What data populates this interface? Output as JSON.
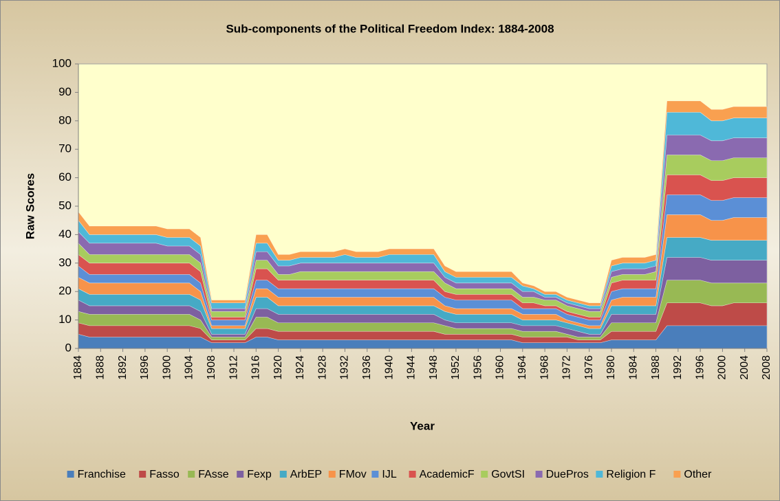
{
  "chart_data": {
    "type": "area",
    "stacked": true,
    "title": "Sub-components of the Political Freedom Index: 1884-2008",
    "x_label": "Year",
    "y_label": "Raw Scores",
    "x": [
      1884,
      1886,
      1898,
      1900,
      1904,
      1906,
      1908,
      1914,
      1916,
      1918,
      1920,
      1922,
      1924,
      1930,
      1932,
      1934,
      1938,
      1940,
      1948,
      1950,
      1952,
      1962,
      1964,
      1966,
      1968,
      1970,
      1972,
      1974,
      1976,
      1978,
      1980,
      1982,
      1986,
      1988,
      1990,
      1996,
      1998,
      2000,
      2002,
      2008
    ],
    "xlim": [
      1884,
      2008
    ],
    "xticks": [
      1884,
      1888,
      1892,
      1896,
      1900,
      1904,
      1908,
      1912,
      1916,
      1920,
      1924,
      1928,
      1932,
      1936,
      1940,
      1944,
      1948,
      1952,
      1956,
      1960,
      1964,
      1968,
      1972,
      1976,
      1980,
      1984,
      1988,
      1992,
      1996,
      2000,
      2004,
      2008
    ],
    "ylim": [
      0,
      100
    ],
    "yticks": [
      0,
      10,
      20,
      30,
      40,
      50,
      60,
      70,
      80,
      90,
      100
    ],
    "grid": false,
    "legend": "bottom",
    "series": [
      {
        "name": "Franchise",
        "color": "#4a7ebb",
        "values": [
          5,
          4,
          4,
          4,
          4,
          4,
          2,
          2,
          4,
          4,
          3,
          3,
          3,
          3,
          3,
          3,
          3,
          3,
          3,
          3,
          3,
          3,
          2,
          2,
          2,
          2,
          2,
          2,
          2,
          2,
          3,
          3,
          3,
          3,
          8,
          8,
          8,
          8,
          8,
          8
        ]
      },
      {
        "name": "Fasso",
        "color": "#be4b48",
        "values": [
          4,
          4,
          4,
          4,
          4,
          3,
          1,
          1,
          3,
          3,
          3,
          3,
          3,
          3,
          3,
          3,
          3,
          3,
          3,
          2,
          2,
          2,
          2,
          2,
          2,
          2,
          2,
          1,
          1,
          1,
          3,
          3,
          3,
          3,
          8,
          8,
          7,
          7,
          8,
          8
        ]
      },
      {
        "name": "FAsse",
        "color": "#98b954",
        "values": [
          4,
          4,
          4,
          4,
          4,
          3,
          1,
          1,
          4,
          4,
          3,
          3,
          3,
          3,
          3,
          3,
          3,
          3,
          3,
          3,
          2,
          2,
          2,
          2,
          2,
          2,
          1,
          1,
          1,
          1,
          3,
          3,
          3,
          3,
          8,
          8,
          8,
          8,
          7,
          7
        ]
      },
      {
        "name": "Fexp",
        "color": "#7d60a0",
        "values": [
          4,
          3,
          3,
          3,
          3,
          3,
          1,
          1,
          3,
          3,
          3,
          3,
          3,
          3,
          3,
          3,
          3,
          3,
          3,
          2,
          2,
          2,
          2,
          2,
          2,
          2,
          2,
          2,
          1,
          1,
          3,
          3,
          3,
          3,
          8,
          8,
          8,
          8,
          8,
          8
        ]
      },
      {
        "name": "ArbEP",
        "color": "#46aac5",
        "values": [
          4,
          4,
          4,
          4,
          4,
          4,
          2,
          2,
          4,
          4,
          3,
          3,
          3,
          3,
          3,
          3,
          3,
          3,
          3,
          3,
          3,
          3,
          2,
          2,
          2,
          2,
          2,
          2,
          2,
          2,
          3,
          3,
          3,
          3,
          7,
          7,
          7,
          7,
          7,
          7
        ]
      },
      {
        "name": "FMov",
        "color": "#f7934a",
        "values": [
          4,
          4,
          4,
          4,
          4,
          3,
          1,
          1,
          3,
          3,
          3,
          3,
          3,
          3,
          3,
          3,
          3,
          3,
          3,
          2,
          2,
          2,
          2,
          2,
          2,
          2,
          1,
          1,
          1,
          1,
          2,
          3,
          3,
          3,
          8,
          8,
          7,
          7,
          8,
          8
        ]
      },
      {
        "name": "IJL",
        "color": "#5b8fd6",
        "values": [
          4,
          3,
          3,
          3,
          3,
          3,
          2,
          2,
          3,
          3,
          3,
          3,
          3,
          3,
          3,
          3,
          3,
          3,
          3,
          3,
          3,
          3,
          2,
          2,
          2,
          2,
          2,
          2,
          2,
          2,
          3,
          3,
          3,
          3,
          7,
          7,
          7,
          7,
          7,
          7
        ]
      },
      {
        "name": "AcademicF",
        "color": "#d9534f",
        "values": [
          4,
          4,
          4,
          4,
          4,
          4,
          1,
          1,
          4,
          4,
          3,
          3,
          3,
          3,
          3,
          3,
          3,
          3,
          3,
          2,
          2,
          2,
          2,
          2,
          1,
          1,
          1,
          1,
          1,
          1,
          3,
          3,
          3,
          3,
          7,
          7,
          7,
          7,
          7,
          7
        ]
      },
      {
        "name": "GovtSI",
        "color": "#a8cc5e",
        "values": [
          4,
          3,
          3,
          3,
          3,
          3,
          2,
          2,
          3,
          3,
          2,
          2,
          3,
          3,
          3,
          3,
          3,
          3,
          3,
          3,
          2,
          2,
          2,
          2,
          2,
          2,
          2,
          2,
          2,
          2,
          2,
          2,
          2,
          3,
          7,
          7,
          7,
          7,
          7,
          7
        ]
      },
      {
        "name": "DuePros",
        "color": "#8a6ab0",
        "values": [
          4,
          4,
          4,
          3,
          3,
          3,
          1,
          1,
          3,
          3,
          3,
          3,
          3,
          3,
          3,
          3,
          3,
          3,
          3,
          2,
          2,
          2,
          2,
          2,
          1,
          1,
          1,
          1,
          1,
          1,
          2,
          2,
          2,
          2,
          7,
          7,
          7,
          7,
          7,
          7
        ]
      },
      {
        "name": "Religion F",
        "color": "#4fb8d8",
        "values": [
          4,
          3,
          3,
          3,
          3,
          3,
          2,
          2,
          3,
          3,
          2,
          2,
          2,
          2,
          3,
          2,
          2,
          3,
          3,
          2,
          2,
          2,
          2,
          1,
          1,
          1,
          1,
          1,
          1,
          1,
          2,
          2,
          2,
          2,
          8,
          8,
          7,
          7,
          7,
          7
        ]
      },
      {
        "name": "Other",
        "color": "#f9a050",
        "values": [
          3,
          3,
          3,
          3,
          3,
          3,
          1,
          1,
          3,
          3,
          2,
          2,
          2,
          2,
          2,
          2,
          2,
          2,
          2,
          2,
          2,
          2,
          1,
          1,
          1,
          1,
          1,
          1,
          1,
          1,
          2,
          2,
          2,
          2,
          4,
          4,
          4,
          4,
          4,
          4
        ]
      }
    ]
  }
}
